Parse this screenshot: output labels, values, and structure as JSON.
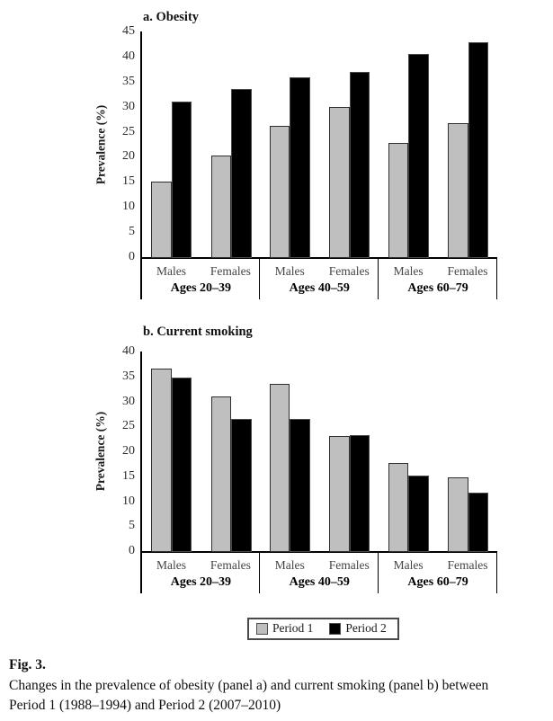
{
  "figure": {
    "caption_label": "Fig. 3.",
    "caption_line1": "Changes in the prevalence of obesity (panel a) and current smoking (panel b) between",
    "caption_line2": "Period 1 (1988–1994) and Period 2 (2007–2010)"
  },
  "legend": {
    "position": "bottom-center",
    "items": [
      {
        "label": "Period 1",
        "color": "#bfbfbf"
      },
      {
        "label": "Period 2",
        "color": "#000000"
      }
    ]
  },
  "chart_data": [
    {
      "type": "bar",
      "panel": "a",
      "title": "a. Obesity",
      "xlabel": "",
      "ylabel": "Prevalence (%)",
      "ylim": [
        0,
        45
      ],
      "ytick_step": 5,
      "grid": false,
      "groups": [
        "Ages 20–39",
        "Ages 40–59",
        "Ages 60–79"
      ],
      "categories": [
        "Males",
        "Females"
      ],
      "series": [
        {
          "name": "Period 1",
          "color": "#bfbfbf",
          "values": [
            15.0,
            20.3,
            26.1,
            30.0,
            22.8,
            26.8
          ]
        },
        {
          "name": "Period 2",
          "color": "#000000",
          "values": [
            31.0,
            33.5,
            35.8,
            37.0,
            40.6,
            42.9
          ]
        }
      ]
    },
    {
      "type": "bar",
      "panel": "b",
      "title": "b. Current smoking",
      "xlabel": "",
      "ylabel": "Prevalence (%)",
      "ylim": [
        0,
        40
      ],
      "ytick_step": 5,
      "grid": false,
      "groups": [
        "Ages 20–39",
        "Ages 40–59",
        "Ages 60–79"
      ],
      "categories": [
        "Males",
        "Females"
      ],
      "series": [
        {
          "name": "Period 1",
          "color": "#bfbfbf",
          "values": [
            36.6,
            31.0,
            33.6,
            23.0,
            17.7,
            14.8
          ]
        },
        {
          "name": "Period 2",
          "color": "#000000",
          "values": [
            34.8,
            26.4,
            26.5,
            23.3,
            15.1,
            11.8
          ]
        }
      ]
    }
  ]
}
